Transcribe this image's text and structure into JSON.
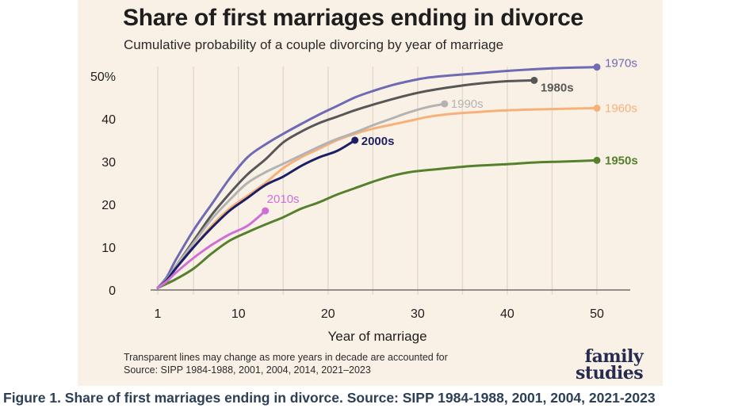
{
  "title": "Share of first marriages ending in divorce",
  "subtitle": "Cumulative probability of a couple divorcing by year of marriage",
  "note_line1": "Transparent lines may change as more years in decade are accounted for",
  "note_line2": "Source: SIPP 1984-1988, 2001, 2004, 2014, 2021–2023",
  "logo_line1": "family",
  "logo_line2": "studies",
  "caption": "Figure 1. Share of first marriages ending in divorce. Source: SIPP 1984-1988, 2001, 2004, 2021-2023",
  "chart_data": {
    "type": "line",
    "title": "Share of first marriages ending in divorce",
    "subtitle": "Cumulative probability of a couple divorcing by year of marriage",
    "xlabel": "Year of marriage",
    "ylabel": "",
    "xlim": [
      1,
      50
    ],
    "ylim": [
      0,
      50
    ],
    "x_ticks": [
      1,
      10,
      20,
      30,
      40,
      50
    ],
    "y_ticks": [
      0,
      10,
      20,
      30,
      40,
      50
    ],
    "y_tick_labels": [
      "0",
      "10",
      "20",
      "30",
      "40",
      "50%"
    ],
    "grid": "vertical",
    "series": [
      {
        "name": "1950s",
        "color": "#55802c",
        "points": [
          [
            1,
            0.5
          ],
          [
            3,
            2.5
          ],
          [
            5,
            5
          ],
          [
            7,
            8.5
          ],
          [
            9,
            11.5
          ],
          [
            11,
            13.5
          ],
          [
            13,
            15.3
          ],
          [
            15,
            17
          ],
          [
            17,
            19
          ],
          [
            19,
            20.5
          ],
          [
            21,
            22.3
          ],
          [
            23,
            23.8
          ],
          [
            25,
            25.3
          ],
          [
            27,
            26.6
          ],
          [
            29,
            27.5
          ],
          [
            31,
            28
          ],
          [
            33,
            28.4
          ],
          [
            35,
            28.8
          ],
          [
            37,
            29.1
          ],
          [
            40,
            29.4
          ],
          [
            43,
            29.8
          ],
          [
            46,
            30
          ],
          [
            50,
            30.3
          ]
        ]
      },
      {
        "name": "1960s",
        "color": "#f7b07a",
        "points": [
          [
            1,
            0.5
          ],
          [
            2,
            2.5
          ],
          [
            3,
            5
          ],
          [
            5,
            10
          ],
          [
            7,
            15
          ],
          [
            9,
            19
          ],
          [
            11,
            22
          ],
          [
            13,
            25
          ],
          [
            15,
            28.5
          ],
          [
            17,
            31
          ],
          [
            19,
            33
          ],
          [
            21,
            35
          ],
          [
            23,
            36.5
          ],
          [
            25,
            37.7
          ],
          [
            27,
            38.6
          ],
          [
            29,
            39.5
          ],
          [
            31,
            40.4
          ],
          [
            33,
            41
          ],
          [
            36,
            41.5
          ],
          [
            40,
            42
          ],
          [
            45,
            42.3
          ],
          [
            50,
            42.5
          ]
        ]
      },
      {
        "name": "1970s",
        "color": "#6e6ab3",
        "points": [
          [
            1,
            0.5
          ],
          [
            2,
            3
          ],
          [
            3,
            7
          ],
          [
            5,
            14
          ],
          [
            7,
            20
          ],
          [
            9,
            26
          ],
          [
            11,
            31
          ],
          [
            13,
            34
          ],
          [
            15,
            36.5
          ],
          [
            17,
            38.8
          ],
          [
            19,
            41
          ],
          [
            21,
            43
          ],
          [
            23,
            45
          ],
          [
            25,
            46.5
          ],
          [
            27,
            47.8
          ],
          [
            29,
            48.8
          ],
          [
            31,
            49.6
          ],
          [
            34,
            50.2
          ],
          [
            37,
            50.7
          ],
          [
            40,
            51.2
          ],
          [
            43,
            51.6
          ],
          [
            46,
            51.9
          ],
          [
            50,
            52.1
          ]
        ]
      },
      {
        "name": "1980s",
        "color": "#575757",
        "points": [
          [
            1,
            0.5
          ],
          [
            2,
            2.5
          ],
          [
            3,
            5.5
          ],
          [
            5,
            11.5
          ],
          [
            7,
            17.5
          ],
          [
            9,
            22.5
          ],
          [
            11,
            27
          ],
          [
            13,
            30.5
          ],
          [
            15,
            34.5
          ],
          [
            17,
            37
          ],
          [
            19,
            39
          ],
          [
            21,
            40.5
          ],
          [
            23,
            42
          ],
          [
            25,
            43.3
          ],
          [
            27,
            44.5
          ],
          [
            29,
            45.6
          ],
          [
            31,
            46.5
          ],
          [
            33,
            47.2
          ],
          [
            35,
            47.8
          ],
          [
            37,
            48.3
          ],
          [
            40,
            48.8
          ],
          [
            43,
            49
          ]
        ],
        "label_point": [
          43,
          49
        ]
      },
      {
        "name": "1990s",
        "color": "#b3b3b3",
        "points": [
          [
            1,
            0.5
          ],
          [
            2,
            2.5
          ],
          [
            3,
            5.5
          ],
          [
            5,
            11
          ],
          [
            7,
            16.5
          ],
          [
            9,
            21
          ],
          [
            11,
            25
          ],
          [
            13,
            27.5
          ],
          [
            15,
            29.5
          ],
          [
            17,
            31.5
          ],
          [
            19,
            33.5
          ],
          [
            21,
            35.3
          ],
          [
            23,
            36.8
          ],
          [
            25,
            38.5
          ],
          [
            27,
            40
          ],
          [
            29,
            41.5
          ],
          [
            31,
            42.7
          ],
          [
            33,
            43.5
          ]
        ],
        "label_point": [
          33,
          43.5
        ]
      },
      {
        "name": "2000s",
        "color": "#1c1f66",
        "points": [
          [
            1,
            0.5
          ],
          [
            2,
            2.3
          ],
          [
            3,
            5
          ],
          [
            5,
            10
          ],
          [
            7,
            14.5
          ],
          [
            9,
            18.5
          ],
          [
            11,
            21.5
          ],
          [
            13,
            24.5
          ],
          [
            15,
            26.5
          ],
          [
            17,
            29
          ],
          [
            19,
            31
          ],
          [
            21,
            32.5
          ],
          [
            23,
            35
          ]
        ],
        "label_point": [
          23,
          35
        ]
      },
      {
        "name": "2010s",
        "color": "#cf6fd6",
        "points": [
          [
            1,
            0.5
          ],
          [
            2,
            2
          ],
          [
            3,
            4
          ],
          [
            5,
            7.5
          ],
          [
            7,
            10.5
          ],
          [
            9,
            13
          ],
          [
            11,
            15
          ],
          [
            13,
            18.5
          ]
        ],
        "label_point": [
          13,
          18.5
        ]
      }
    ]
  }
}
